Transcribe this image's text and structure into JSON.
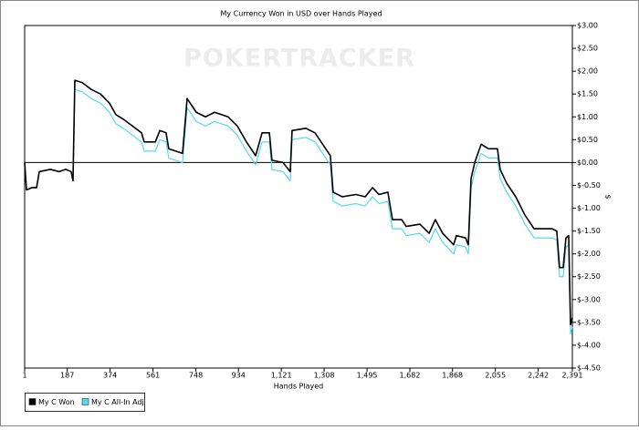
{
  "chart_data": {
    "type": "line",
    "title": "My Currency Won in USD over Hands Played",
    "watermark": "POKERTRACKER",
    "x_label": "Hands Played",
    "y_label": "$",
    "x": [
      1,
      9,
      33,
      53,
      65,
      113,
      152,
      180,
      204,
      212,
      220,
      252,
      292,
      332,
      371,
      399,
      431,
      471,
      511,
      523,
      571,
      591,
      618,
      630,
      690,
      710,
      750,
      790,
      830,
      889,
      929,
      969,
      1009,
      1037,
      1069,
      1080,
      1128,
      1160,
      1168,
      1228,
      1268,
      1308,
      1335,
      1347,
      1387,
      1447,
      1487,
      1519,
      1547,
      1586,
      1606,
      1646,
      1666,
      1726,
      1766,
      1793,
      1825,
      1873,
      1885,
      1925,
      1937,
      1949,
      1965,
      1993,
      2025,
      2064,
      2076,
      2104,
      2144,
      2184,
      2224,
      2264,
      2303,
      2323,
      2335,
      2351,
      2363,
      2375,
      2383,
      2391
    ],
    "series": [
      {
        "name": "My C Won",
        "color": "#000000",
        "values": [
          0,
          -0.6,
          -0.55,
          -0.55,
          -0.2,
          -0.15,
          -0.2,
          -0.15,
          -0.2,
          -0.4,
          1.8,
          1.75,
          1.6,
          1.5,
          1.3,
          1.05,
          0.95,
          0.8,
          0.65,
          0.45,
          0.45,
          0.7,
          0.65,
          0.3,
          0.2,
          1.4,
          1.1,
          1.0,
          1.1,
          1.0,
          0.8,
          0.45,
          0.15,
          0.65,
          0.65,
          0.05,
          0,
          -0.2,
          0.7,
          0.75,
          0.65,
          0.35,
          0.15,
          -0.65,
          -0.75,
          -0.7,
          -0.75,
          -0.55,
          -0.7,
          -0.65,
          -1.25,
          -1.25,
          -1.4,
          -1.35,
          -1.55,
          -1.25,
          -1.55,
          -1.8,
          -1.6,
          -1.65,
          -1.8,
          -0.35,
          0,
          0.4,
          0.3,
          0.3,
          -0.15,
          -0.45,
          -0.75,
          -1.15,
          -1.45,
          -1.45,
          -1.45,
          -1.5,
          -2.3,
          -2.3,
          -1.65,
          -1.6,
          -3.55,
          -3.4
        ]
      },
      {
        "name": "My C All-In Adj",
        "color": "#55d8ee",
        "values": [
          0,
          -0.6,
          -0.55,
          -0.55,
          -0.2,
          -0.15,
          -0.2,
          -0.15,
          -0.2,
          -0.4,
          1.6,
          1.55,
          1.4,
          1.3,
          1.1,
          0.85,
          0.75,
          0.6,
          0.45,
          0.25,
          0.25,
          0.5,
          0.45,
          0.1,
          0,
          1.2,
          0.9,
          0.8,
          0.9,
          0.8,
          0.6,
          0.25,
          -0.05,
          0.45,
          0.45,
          -0.15,
          -0.2,
          -0.4,
          0.5,
          0.55,
          0.45,
          0.15,
          -0.05,
          -0.85,
          -0.95,
          -0.9,
          -0.95,
          -0.75,
          -0.9,
          -0.85,
          -1.45,
          -1.45,
          -1.6,
          -1.55,
          -1.75,
          -1.45,
          -1.75,
          -2.0,
          -1.8,
          -1.85,
          -2.0,
          -0.55,
          -0.2,
          0.2,
          0.1,
          0.1,
          -0.35,
          -0.65,
          -0.95,
          -1.35,
          -1.65,
          -1.65,
          -1.65,
          -1.7,
          -2.5,
          -2.5,
          -1.85,
          -1.8,
          -3.75,
          -3.6
        ]
      }
    ],
    "xlim": [
      1,
      2391
    ],
    "xticks": [
      1,
      187,
      374,
      561,
      748,
      934,
      {
        "value": 1121,
        "label": "1,121"
      },
      {
        "value": 1308,
        "label": "1,308"
      },
      {
        "value": 1495,
        "label": "1,495"
      },
      {
        "value": 1682,
        "label": "1,682"
      },
      {
        "value": 1868,
        "label": "1,868"
      },
      {
        "value": 2055,
        "label": "2,055"
      },
      {
        "value": 2242,
        "label": "2,242"
      },
      {
        "value": 2391,
        "label": "2,391"
      }
    ],
    "ylim": [
      -4.5,
      3.0
    ],
    "yticks": [
      {
        "value": 3.0,
        "label": "$3.00"
      },
      {
        "value": 2.5,
        "label": "$2.50"
      },
      {
        "value": 2.0,
        "label": "$2.00"
      },
      {
        "value": 1.5,
        "label": "$1.50"
      },
      {
        "value": 1.0,
        "label": "$1.00"
      },
      {
        "value": 0.5,
        "label": "$0.50"
      },
      {
        "value": 0,
        "label": "$0.00"
      },
      {
        "value": -0.5,
        "label": "$-0.50"
      },
      {
        "value": -1.0,
        "label": "$-1.00"
      },
      {
        "value": -1.5,
        "label": "$-1.50"
      },
      {
        "value": -2.0,
        "label": "$-2.00"
      },
      {
        "value": -2.5,
        "label": "$-2.50"
      },
      {
        "value": -3.0,
        "label": "$-3.00"
      },
      {
        "value": -3.5,
        "label": "$-3.50"
      },
      {
        "value": -4.0,
        "label": "$-4.00"
      },
      {
        "value": -4.5,
        "label": "$-4.50"
      }
    ],
    "y_axis_side": "right",
    "legend": "bottom-left"
  }
}
